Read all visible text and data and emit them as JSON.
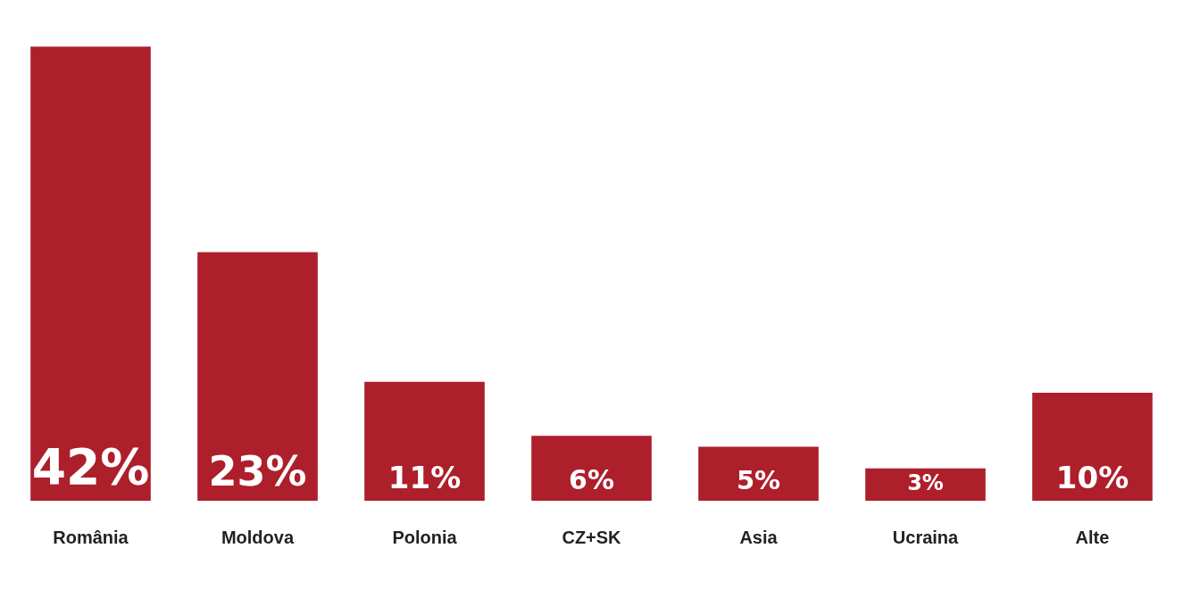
{
  "chart_data": {
    "type": "bar",
    "categories": [
      "România",
      "Moldova",
      "Polonia",
      "CZ+SK",
      "Asia",
      "Ucraina",
      "Alte"
    ],
    "values": [
      42,
      23,
      11,
      6,
      5,
      3,
      10
    ],
    "color": "#ad1f2b",
    "value_labels": [
      "42%",
      "23%",
      "11%",
      "6%",
      "5%",
      "3%",
      "10%"
    ],
    "grid": false,
    "legend": false
  }
}
